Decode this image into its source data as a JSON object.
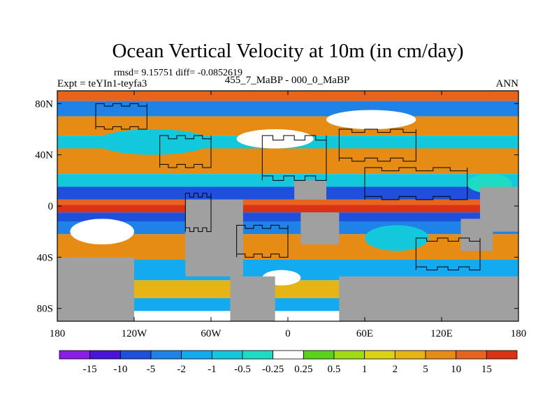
{
  "chart_data": {
    "type": "heatmap",
    "title": "Ocean Vertical Velocity at 10m (in cm/day)",
    "stats_text": "rmsd= 9.15751 diff= -0.0852619",
    "left_label": "Expt = teYIn1-teyfa3",
    "center_label": "455_7_MaBP - 000_0_MaBP",
    "right_label": "ANN",
    "xlim": [
      -180,
      180
    ],
    "ylim": [
      -90,
      90
    ],
    "x_ticks": [
      {
        "value": -180,
        "label": "180"
      },
      {
        "value": -120,
        "label": "120W"
      },
      {
        "value": -60,
        "label": "60W"
      },
      {
        "value": 0,
        "label": "0"
      },
      {
        "value": 60,
        "label": "60E"
      },
      {
        "value": 120,
        "label": "120E"
      },
      {
        "value": 180,
        "label": "180"
      }
    ],
    "y_ticks": [
      {
        "value": 80,
        "label": "80N"
      },
      {
        "value": 40,
        "label": "40N"
      },
      {
        "value": 0,
        "label": "0"
      },
      {
        "value": -40,
        "label": "40S"
      },
      {
        "value": -80,
        "label": "80S"
      }
    ],
    "colorbar": {
      "labels": [
        "-15",
        "-10",
        "-5",
        "-2",
        "-1",
        "-0.5",
        "-0.25",
        "0.25",
        "0.5",
        "1",
        "2",
        "5",
        "10",
        "15"
      ],
      "colors": [
        "#8a1ee6",
        "#4a14d8",
        "#1e50dc",
        "#1e82e6",
        "#14aaf0",
        "#14c8dc",
        "#1edcc3",
        "#ffffff",
        "#5ad21e",
        "#a0dc14",
        "#dcd214",
        "#e6b414",
        "#e68c14",
        "#e6641e",
        "#dc3214"
      ]
    },
    "land_color": "#a0a0a0",
    "bands": [
      {
        "lat": [
          82,
          90
        ],
        "value": 10
      },
      {
        "lat": [
          70,
          82
        ],
        "value": -3
      },
      {
        "lat": [
          55,
          70
        ],
        "value": 5
      },
      {
        "lat": [
          45,
          55
        ],
        "value": -1
      },
      {
        "lat": [
          25,
          45
        ],
        "value": 6
      },
      {
        "lat": [
          15,
          25
        ],
        "value": -1
      },
      {
        "lat": [
          5,
          15
        ],
        "value": -7
      },
      {
        "lat": [
          1,
          5
        ],
        "value": 12
      },
      {
        "lat": [
          -5,
          1
        ],
        "value": 16
      },
      {
        "lat": [
          -12,
          -5
        ],
        "value": -8
      },
      {
        "lat": [
          -22,
          -12
        ],
        "value": -3
      },
      {
        "lat": [
          -42,
          -22
        ],
        "value": 7
      },
      {
        "lat": [
          -58,
          -42
        ],
        "value": -2
      },
      {
        "lat": [
          -72,
          -58
        ],
        "value": 4
      },
      {
        "lat": [
          -82,
          -72
        ],
        "value": -2
      }
    ],
    "patches": [
      {
        "lon": [
          -150,
          -60
        ],
        "lat": [
          40,
          60
        ],
        "value": -1
      },
      {
        "lon": [
          -40,
          20
        ],
        "lat": [
          45,
          60
        ],
        "value": 0
      },
      {
        "lon": [
          30,
          100
        ],
        "lat": [
          60,
          75
        ],
        "value": 0
      },
      {
        "lon": [
          -170,
          -120
        ],
        "lat": [
          -30,
          -10
        ],
        "value": 0
      },
      {
        "lon": [
          60,
          110
        ],
        "lat": [
          -35,
          -15
        ],
        "value": -1
      },
      {
        "lon": [
          -20,
          10
        ],
        "lat": [
          -62,
          -50
        ],
        "value": 0
      },
      {
        "lon": [
          140,
          175
        ],
        "lat": [
          10,
          25
        ],
        "value": -0.3
      }
    ],
    "land_regions": [
      {
        "name": "south-america",
        "lon": [
          -80,
          -35
        ],
        "lat": [
          -55,
          5
        ]
      },
      {
        "name": "south-pacific-land",
        "lon": [
          -180,
          -120
        ],
        "lat": [
          -90,
          -40
        ]
      },
      {
        "name": "africa-south",
        "lon": [
          10,
          40
        ],
        "lat": [
          -30,
          -5
        ]
      },
      {
        "name": "atlantic-south-land",
        "lon": [
          -45,
          -10
        ],
        "lat": [
          -90,
          -55
        ]
      },
      {
        "name": "southern-indian-land",
        "lon": [
          40,
          180
        ],
        "lat": [
          -90,
          -55
        ]
      },
      {
        "name": "australia-east",
        "lon": [
          135,
          160
        ],
        "lat": [
          -35,
          -10
        ]
      },
      {
        "name": "asia-east",
        "lon": [
          150,
          180
        ],
        "lat": [
          -20,
          15
        ]
      },
      {
        "name": "africa-north",
        "lon": [
          5,
          30
        ],
        "lat": [
          5,
          20
        ]
      }
    ],
    "coast_blocks": [
      {
        "lon": [
          -150,
          -110
        ],
        "lat": [
          60,
          80
        ]
      },
      {
        "lon": [
          -100,
          -60
        ],
        "lat": [
          30,
          55
        ]
      },
      {
        "lon": [
          -80,
          -60
        ],
        "lat": [
          -20,
          10
        ]
      },
      {
        "lon": [
          -20,
          30
        ],
        "lat": [
          20,
          55
        ]
      },
      {
        "lon": [
          40,
          100
        ],
        "lat": [
          35,
          60
        ]
      },
      {
        "lon": [
          60,
          140
        ],
        "lat": [
          5,
          30
        ]
      },
      {
        "lon": [
          -40,
          0
        ],
        "lat": [
          -40,
          -15
        ]
      },
      {
        "lon": [
          100,
          150
        ],
        "lat": [
          -50,
          -25
        ]
      }
    ]
  }
}
